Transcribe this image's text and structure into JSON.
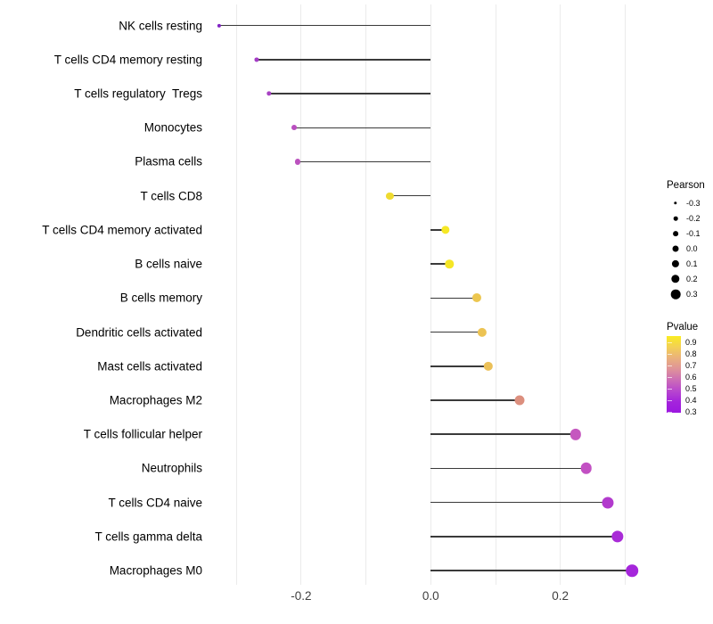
{
  "figure": {
    "background": "#ffffff",
    "stem_color": "#3a3a3a",
    "gridline_color": "#ebebeb",
    "gridline_values": [
      -0.3,
      -0.2,
      -0.1,
      0.0,
      0.1,
      0.2,
      0.3
    ],
    "x_tick_labels": [
      {
        "label": "-0.2",
        "value": -0.2
      },
      {
        "label": "0.0",
        "value": 0.0
      },
      {
        "label": "0.2",
        "value": 0.2
      }
    ]
  },
  "chart_data": {
    "type": "scatter",
    "variant": "lollipop",
    "orientation": "horizontal",
    "title": "",
    "xlabel": "",
    "ylabel": "",
    "xlim": [
      -0.35,
      0.34
    ],
    "x_ticks": [
      -0.2,
      0.0,
      0.2
    ],
    "grid": "vertical-only-light-gray",
    "legend_position": "right",
    "categories": [
      "NK cells resting",
      "T cells CD4 memory resting",
      "T cells regulatory  Tregs",
      "Monocytes",
      "Plasma cells",
      "T cells CD8",
      "T cells CD4 memory activated",
      "B cells naive",
      "B cells memory",
      "Dendritic cells activated",
      "Mast cells activated",
      "Macrophages M2",
      "T cells follicular helper",
      "Neutrophils",
      "T cells CD4 naive",
      "T cells gamma delta",
      "Macrophages M0"
    ],
    "series": [
      {
        "name": "Pearson",
        "values": [
          -0.327,
          -0.269,
          -0.25,
          -0.211,
          -0.205,
          -0.063,
          0.023,
          0.029,
          0.071,
          0.079,
          0.089,
          0.137,
          0.224,
          0.24,
          0.273,
          0.288,
          0.311
        ]
      },
      {
        "name": "Pvalue (color-encoded, approx.)",
        "values": [
          0.3,
          0.42,
          0.43,
          0.47,
          0.47,
          0.88,
          0.92,
          0.92,
          0.78,
          0.77,
          0.76,
          0.6,
          0.5,
          0.49,
          0.44,
          0.38,
          0.36
        ]
      }
    ],
    "point_colors": [
      "#8224C4",
      "#A43CC5",
      "#A842C3",
      "#B94FBF",
      "#BB52BE",
      "#EFDB30",
      "#F6E825",
      "#F5E626",
      "#ECC64F",
      "#ECC353",
      "#EBC058",
      "#DC8F7E",
      "#C557BF",
      "#C250C3",
      "#B23ACD",
      "#A92BD7",
      "#A526DB"
    ]
  },
  "legend_pearson": {
    "title": "Pearson",
    "dot_color": "#000000",
    "entries": [
      {
        "label": "-0.3",
        "value": -0.3
      },
      {
        "label": "-0.2",
        "value": -0.2
      },
      {
        "label": "-0.1",
        "value": -0.1
      },
      {
        "label": "0.0",
        "value": 0.0
      },
      {
        "label": "0.1",
        "value": 0.1
      },
      {
        "label": "0.2",
        "value": 0.2
      },
      {
        "label": "0.3",
        "value": 0.3
      }
    ]
  },
  "legend_pvalue": {
    "title": "Pvalue",
    "labels": [
      "0.9",
      "0.8",
      "0.7",
      "0.6",
      "0.5",
      "0.4",
      "0.3"
    ],
    "gradient_stops": [
      "#FAEC21",
      "#F3D055",
      "#EAB17C",
      "#DF9399",
      "#CC6DB6",
      "#B847CE",
      "#A424DC",
      "#9C17E0"
    ]
  }
}
